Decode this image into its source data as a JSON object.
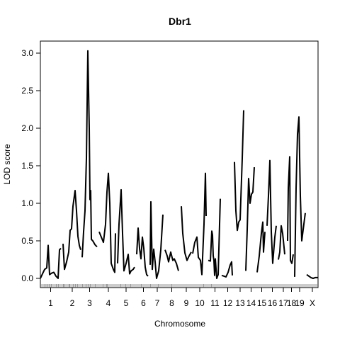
{
  "chart_data": {
    "type": "line",
    "title": "Dbr1",
    "xlabel": "Chromosome",
    "ylabel": "LOD score",
    "ylim": [
      0,
      3.1
    ],
    "y_ticks": [
      0.0,
      0.5,
      1.0,
      1.5,
      2.0,
      2.5,
      3.0
    ],
    "y_tick_labels": [
      "0.0",
      "0.5",
      "1.0",
      "1.5",
      "2.0",
      "2.5",
      "3.0"
    ],
    "line_color": "#000000",
    "grid": false,
    "legend": "none",
    "chromosomes": [
      {
        "label": "1",
        "range": [
          57,
          86
        ],
        "points": [
          [
            57,
            0.0
          ],
          [
            60,
            0.06
          ],
          [
            63,
            0.12
          ],
          [
            66,
            0.14
          ],
          [
            68,
            0.44
          ],
          [
            70,
            0.05
          ],
          [
            73,
            0.07
          ],
          [
            76,
            0.08
          ],
          [
            79,
            0.03
          ],
          [
            82,
            0.0
          ],
          [
            84,
            0.38
          ],
          [
            86,
            0.4
          ]
        ]
      },
      {
        "label": "2",
        "range": [
          89,
          115
        ],
        "points": [
          [
            89,
            0.46
          ],
          [
            91,
            0.12
          ],
          [
            94,
            0.22
          ],
          [
            97,
            0.35
          ],
          [
            99,
            0.64
          ],
          [
            101,
            0.66
          ],
          [
            103,
            0.96
          ],
          [
            106,
            1.17
          ],
          [
            108,
            0.9
          ],
          [
            110,
            0.56
          ],
          [
            112,
            0.44
          ],
          [
            114,
            0.38
          ]
        ]
      },
      {
        "label": "3",
        "range": [
          116,
          137
        ],
        "points": [
          [
            116,
            0.28
          ],
          [
            118,
            0.62
          ],
          [
            120,
            0.9
          ],
          [
            122,
            1.6
          ],
          [
            124,
            3.03
          ],
          [
            126,
            2.0
          ],
          [
            127,
            1.05
          ],
          [
            128,
            1.17
          ],
          [
            129,
            0.52
          ],
          [
            131,
            0.5
          ],
          [
            134,
            0.45
          ],
          [
            137,
            0.42
          ]
        ]
      },
      {
        "label": "4",
        "range": [
          140,
          166
        ],
        "points": [
          [
            140,
            0.62
          ],
          [
            143,
            0.55
          ],
          [
            146,
            0.48
          ],
          [
            149,
            0.72
          ],
          [
            151,
            1.15
          ],
          [
            153,
            1.4
          ],
          [
            155,
            1.0
          ],
          [
            157,
            0.2
          ],
          [
            160,
            0.12
          ],
          [
            162,
            0.08
          ],
          [
            163,
            0.6
          ]
        ]
      },
      {
        "label": "5",
        "range": [
          166,
          190
        ],
        "points": [
          [
            166,
            0.2
          ],
          [
            168,
            0.72
          ],
          [
            171,
            1.18
          ],
          [
            173,
            0.6
          ],
          [
            175,
            0.1
          ],
          [
            178,
            0.2
          ],
          [
            181,
            0.32
          ],
          [
            183,
            0.06
          ],
          [
            185,
            0.1
          ],
          [
            188,
            0.12
          ],
          [
            190,
            0.15
          ]
        ]
      },
      {
        "label": "6",
        "range": [
          193,
          212
        ],
        "points": [
          [
            193,
            0.32
          ],
          [
            195,
            0.67
          ],
          [
            197,
            0.4
          ],
          [
            199,
            0.26
          ],
          [
            201,
            0.55
          ],
          [
            203,
            0.4
          ],
          [
            205,
            0.15
          ],
          [
            207,
            0.05
          ],
          [
            209,
            0.03
          ]
        ]
      },
      {
        "label": "7",
        "range": [
          212,
          232
        ],
        "points": [
          [
            212,
            0.18
          ],
          [
            213,
            1.02
          ],
          [
            215,
            0.12
          ],
          [
            217,
            0.39
          ],
          [
            219,
            0.22
          ],
          [
            221,
            0.0
          ],
          [
            224,
            0.1
          ],
          [
            227,
            0.38
          ],
          [
            230,
            0.85
          ]
        ]
      },
      {
        "label": "8",
        "range": [
          233,
          252
        ],
        "points": [
          [
            233,
            0.38
          ],
          [
            236,
            0.3
          ],
          [
            238,
            0.22
          ],
          [
            241,
            0.35
          ],
          [
            244,
            0.24
          ],
          [
            246,
            0.26
          ],
          [
            249,
            0.2
          ],
          [
            252,
            0.1
          ]
        ]
      },
      {
        "label": "9",
        "range": [
          256,
          270
        ],
        "points": [
          [
            256,
            0.96
          ],
          [
            258,
            0.6
          ],
          [
            261,
            0.34
          ],
          [
            264,
            0.24
          ],
          [
            267,
            0.3
          ],
          [
            270,
            0.35
          ]
        ]
      },
      {
        "label": "10",
        "range": [
          272,
          292
        ],
        "points": [
          [
            272,
            0.33
          ],
          [
            275,
            0.48
          ],
          [
            278,
            0.55
          ],
          [
            280,
            0.28
          ],
          [
            283,
            0.24
          ],
          [
            285,
            0.05
          ],
          [
            288,
            0.72
          ],
          [
            290,
            1.4
          ],
          [
            291,
            0.83
          ]
        ]
      },
      {
        "label": "11",
        "range": [
          294,
          313
        ],
        "points": [
          [
            294,
            0.24
          ],
          [
            297,
            0.23
          ],
          [
            299,
            0.63
          ],
          [
            300,
            0.58
          ],
          [
            301,
            0.3
          ],
          [
            302,
            0.24
          ],
          [
            303,
            0.04
          ],
          [
            304,
            0.26
          ],
          [
            306,
            0.0
          ],
          [
            308,
            0.05
          ],
          [
            311,
            1.06
          ]
        ]
      },
      {
        "label": "12",
        "range": [
          313,
          330
        ],
        "points": [
          [
            313,
            0.04
          ],
          [
            316,
            0.03
          ],
          [
            319,
            0.02
          ],
          [
            322,
            0.08
          ],
          [
            325,
            0.18
          ],
          [
            327,
            0.22
          ],
          [
            328,
            0.04
          ]
        ]
      },
      {
        "label": "13",
        "range": [
          331,
          347
        ],
        "points": [
          [
            331,
            1.55
          ],
          [
            333,
            0.9
          ],
          [
            335,
            0.64
          ],
          [
            337,
            0.75
          ],
          [
            339,
            0.78
          ],
          [
            342,
            1.6
          ],
          [
            344,
            2.24
          ]
        ]
      },
      {
        "label": "14",
        "range": [
          347,
          362
        ],
        "points": [
          [
            347,
            0.1
          ],
          [
            349,
            0.65
          ],
          [
            351,
            1.33
          ],
          [
            353,
            1.0
          ],
          [
            355,
            1.12
          ],
          [
            357,
            1.15
          ],
          [
            359,
            1.48
          ]
        ]
      },
      {
        "label": "15",
        "range": [
          363,
          376
        ],
        "points": [
          [
            363,
            0.08
          ],
          [
            366,
            0.3
          ],
          [
            369,
            0.6
          ],
          [
            371,
            0.75
          ],
          [
            372,
            0.35
          ],
          [
            374,
            0.62
          ]
        ]
      },
      {
        "label": "16",
        "range": [
          377,
          392
        ],
        "points": [
          [
            377,
            0.7
          ],
          [
            379,
            1.1
          ],
          [
            381,
            1.57
          ],
          [
            383,
            0.62
          ],
          [
            385,
            0.2
          ],
          [
            388,
            0.55
          ],
          [
            390,
            0.7
          ]
        ]
      },
      {
        "label": "17",
        "range": [
          393,
          407
        ],
        "points": [
          [
            393,
            0.25
          ],
          [
            395,
            0.35
          ],
          [
            397,
            0.7
          ],
          [
            399,
            0.6
          ],
          [
            402,
            0.32
          ]
        ]
      },
      {
        "label": "18",
        "range": [
          406,
          417
        ],
        "points": [
          [
            406,
            0.5
          ],
          [
            407,
            1.2
          ],
          [
            409,
            1.62
          ],
          [
            410,
            0.24
          ],
          [
            412,
            0.2
          ],
          [
            414,
            0.32
          ]
        ]
      },
      {
        "label": "19",
        "range": [
          416,
          430
        ],
        "points": [
          [
            416,
            0.02
          ],
          [
            418,
            1.2
          ],
          [
            420,
            1.92
          ],
          [
            422,
            2.15
          ],
          [
            424,
            1.1
          ],
          [
            426,
            0.5
          ],
          [
            428,
            0.65
          ],
          [
            431,
            0.87
          ]
        ]
      },
      {
        "label": "X",
        "range": [
          433,
          449
        ],
        "points": [
          [
            433,
            0.05
          ],
          [
            436,
            0.03
          ],
          [
            439,
            0.01
          ],
          [
            442,
            0.0
          ],
          [
            445,
            0.01
          ],
          [
            449,
            0.01
          ]
        ]
      }
    ],
    "markers": [
      59,
      61,
      63,
      64,
      66,
      67,
      69,
      70,
      72,
      73,
      75,
      77,
      79,
      80,
      82,
      83,
      85,
      87,
      89,
      90,
      91,
      93,
      95,
      97,
      98,
      99,
      101,
      103,
      104,
      106,
      107,
      109,
      110,
      112,
      114,
      116,
      117,
      119,
      121,
      122,
      124,
      125,
      127,
      128,
      130,
      132,
      134,
      135,
      137,
      139,
      141,
      143,
      145,
      146,
      148,
      150,
      151,
      152,
      154,
      156,
      158,
      160,
      162,
      164,
      166,
      168,
      170,
      171,
      173,
      175,
      177,
      178,
      180,
      182,
      184,
      185,
      187,
      189,
      191,
      193,
      195,
      197,
      199,
      200,
      202,
      204,
      206,
      208,
      210,
      212,
      213,
      215,
      217,
      219,
      221,
      223,
      224,
      226,
      228,
      230,
      232,
      234,
      236,
      238,
      240,
      242,
      243,
      245,
      247,
      249,
      251,
      253,
      255,
      257,
      259,
      261,
      263,
      265,
      267,
      269,
      271,
      273,
      275,
      277,
      279,
      281,
      283,
      285,
      287,
      288,
      290,
      292,
      294,
      296,
      298,
      299,
      301,
      303,
      305,
      307,
      309,
      311,
      313,
      315,
      317,
      319,
      321,
      323,
      325,
      327,
      329,
      331,
      333,
      335,
      337,
      339,
      341,
      343,
      345,
      347,
      349,
      351,
      353,
      355,
      357,
      359,
      361,
      363,
      365,
      367,
      369,
      371,
      373,
      375,
      377,
      379,
      381,
      383,
      385,
      387,
      389,
      391,
      393,
      395,
      397,
      399,
      401,
      403,
      405,
      407,
      409,
      411,
      413,
      415,
      417,
      419,
      421,
      423,
      425,
      427,
      429,
      431,
      433,
      435,
      437,
      439,
      441,
      443,
      445,
      447
    ]
  }
}
